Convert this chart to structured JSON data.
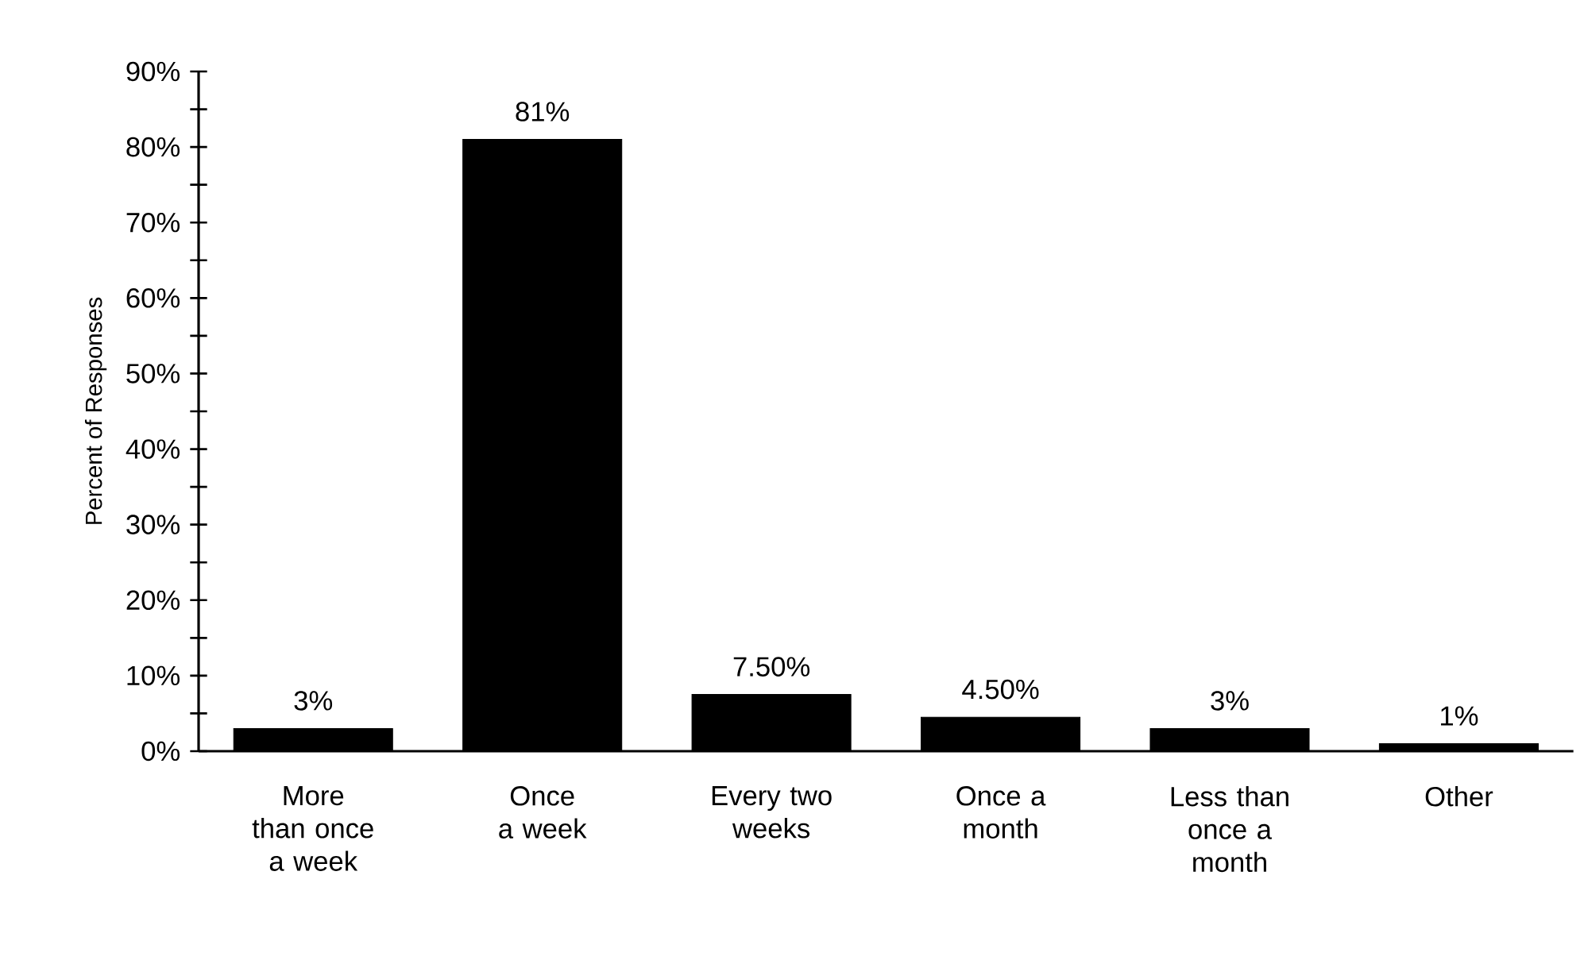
{
  "chart_data": {
    "type": "bar",
    "ylabel": "Percent of Responses",
    "categories": [
      "More than once a week",
      "Once a week",
      "Every two weeks",
      "Once a month",
      "Less than once a month",
      "Other"
    ],
    "values": [
      3,
      81,
      7.5,
      4.5,
      3,
      1
    ],
    "value_labels": [
      "3%",
      "81%",
      "7.50%",
      "4.50%",
      "3%",
      "1%"
    ],
    "color": "#000000",
    "ylim": [
      0,
      90
    ],
    "yticks": [
      {
        "value": 0,
        "label": "0%"
      },
      {
        "value": 5,
        "label": null
      },
      {
        "value": 10,
        "label": "10%"
      },
      {
        "value": 15,
        "label": null
      },
      {
        "value": 20,
        "label": "20%"
      },
      {
        "value": 25,
        "label": null
      },
      {
        "value": 30,
        "label": "30%"
      },
      {
        "value": 35,
        "label": null
      },
      {
        "value": 40,
        "label": "40%"
      },
      {
        "value": 45,
        "label": null
      },
      {
        "value": 50,
        "label": "50%"
      },
      {
        "value": 55,
        "label": null
      },
      {
        "value": 60,
        "label": "60%"
      },
      {
        "value": 65,
        "label": null
      },
      {
        "value": 70,
        "label": "70%"
      },
      {
        "value": 75,
        "label": null
      },
      {
        "value": 80,
        "label": "80%"
      },
      {
        "value": 85,
        "label": null
      },
      {
        "value": 90,
        "label": "90%"
      }
    ],
    "grid": false
  }
}
